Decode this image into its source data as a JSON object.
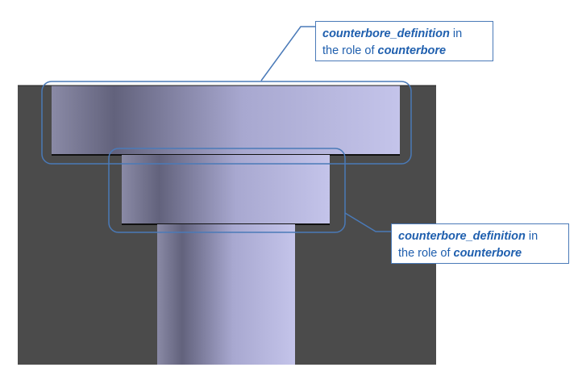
{
  "callouts": [
    {
      "id": "upper",
      "feature_name": "counterbore_definition",
      "in_text": " in",
      "role_prefix": "the role of ",
      "role_name": "counterbore"
    },
    {
      "id": "lower",
      "feature_name": "counterbore_definition",
      "in_text": " in",
      "role_prefix": "the role of ",
      "role_name": "counterbore"
    }
  ],
  "colors": {
    "block": "#4b4b4b",
    "hole_dark": "#62627c",
    "hole_light": "#c4c4ea",
    "callout": "#4a7ab8",
    "text": "#1f5fae"
  },
  "icons": {
    "part": "cross-section-of-counterbored-hole"
  }
}
